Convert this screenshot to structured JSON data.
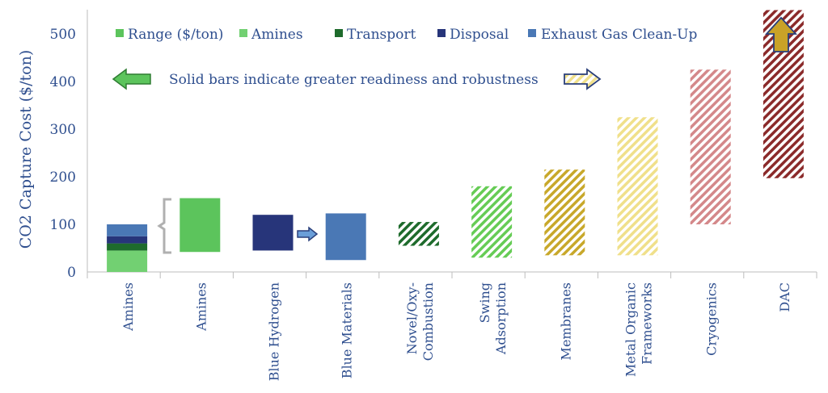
{
  "chart_data": {
    "type": "bar",
    "title": "",
    "ylabel": "CO2 Capture Cost ($/ton)",
    "ylim": [
      0,
      550
    ],
    "yticks": [
      0,
      100,
      200,
      300,
      400,
      500
    ],
    "grid": false,
    "legend_position": "top",
    "legend": [
      {
        "label": "Range ($/ton)",
        "color": "#5cc45c"
      },
      {
        "label": "Amines",
        "color": "#72d072"
      },
      {
        "label": "Transport",
        "color": "#1e6b2c"
      },
      {
        "label": "Disposal",
        "color": "#27357a"
      },
      {
        "label": "Exhaust Gas Clean-Up",
        "color": "#4a78b5"
      }
    ],
    "note": "Solid bars indicate greater readiness and robustness",
    "categories": [
      "Amines",
      "Amines",
      "Blue Hydrogen",
      "Blue Materials",
      "Novel/Oxy-\nCombustion",
      "Swing\nAdsorption",
      "Membranes",
      "Metal Organic\nFrameworks",
      "Cryogenics",
      "DAC"
    ],
    "stacked_breakdown": {
      "category_index": 0,
      "segments": [
        {
          "name": "Amines",
          "low": 0,
          "high": 45,
          "color": "#72d072"
        },
        {
          "name": "Transport",
          "low": 45,
          "high": 60,
          "color": "#1e6b2c"
        },
        {
          "name": "Disposal",
          "low": 60,
          "high": 75,
          "color": "#27357a"
        },
        {
          "name": "Exhaust Gas Clean-Up",
          "low": 75,
          "high": 100,
          "color": "#4a78b5"
        }
      ]
    },
    "ranges": [
      {
        "category_index": 1,
        "low": 42,
        "high": 155,
        "color": "#5cc45c",
        "pattern": "solid"
      },
      {
        "category_index": 2,
        "low": 45,
        "high": 120,
        "color": "#27357a",
        "pattern": "solid"
      },
      {
        "category_index": 3,
        "low": 25,
        "high": 123,
        "color": "#4a78b5",
        "pattern": "solid"
      },
      {
        "category_index": 4,
        "low": 55,
        "high": 105,
        "color": "#1e6b2c",
        "pattern": "hatch"
      },
      {
        "category_index": 5,
        "low": 30,
        "high": 180,
        "color": "#66cc55",
        "pattern": "hatch"
      },
      {
        "category_index": 6,
        "low": 35,
        "high": 215,
        "color": "#c8a82a",
        "pattern": "hatch"
      },
      {
        "category_index": 7,
        "low": 35,
        "high": 325,
        "color": "#f0e08a",
        "pattern": "hatch"
      },
      {
        "category_index": 8,
        "low": 100,
        "high": 425,
        "color": "#d4888a",
        "pattern": "hatch"
      },
      {
        "category_index": 9,
        "low": 197,
        "high": 550,
        "color": "#8b2a2a",
        "pattern": "hatch"
      }
    ]
  }
}
